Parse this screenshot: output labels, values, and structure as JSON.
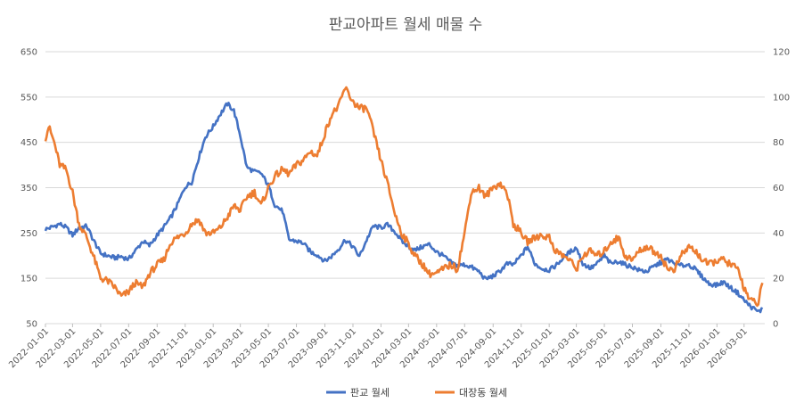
{
  "chart_data": {
    "type": "line",
    "title": "판교아파트 월세 매물 수",
    "x_tick_labels": [
      "2022-01-01",
      "2022-03-01",
      "2022-05-01",
      "2022-07-01",
      "2022-09-01",
      "2022-11-01",
      "2023-01-01",
      "2023-03-01",
      "2023-05-01",
      "2023-07-01",
      "2023-09-01",
      "2023-11-01",
      "2024-01-01",
      "2024-03-01",
      "2024-05-01",
      "2024-07-01",
      "2024-09-01",
      "2024-11-01",
      "2025-01-01",
      "2025-03-01",
      "2025-05-01",
      "2025-07-01",
      "2025-09-01",
      "2025-11-01",
      "2026-01-01",
      "2026-03-01"
    ],
    "xlim": [
      "2022-01-01",
      "2026-04-15"
    ],
    "y_left": {
      "min": 50,
      "max": 650,
      "ticks": [
        50,
        150,
        250,
        350,
        450,
        550,
        650
      ]
    },
    "y_right": {
      "min": 0,
      "max": 120,
      "ticks": [
        0,
        20,
        40,
        60,
        80,
        100,
        120
      ]
    },
    "grid": "horizontal",
    "legend_position": "bottom",
    "series": [
      {
        "name": "판교 월세",
        "axis": "left",
        "color": "#4472C4",
        "points": [
          [
            "2022-01-01",
            258
          ],
          [
            "2022-01-15",
            263
          ],
          [
            "2022-02-01",
            270
          ],
          [
            "2022-02-15",
            262
          ],
          [
            "2022-03-01",
            245
          ],
          [
            "2022-03-15",
            262
          ],
          [
            "2022-04-01",
            265
          ],
          [
            "2022-04-15",
            235
          ],
          [
            "2022-05-01",
            205
          ],
          [
            "2022-05-15",
            200
          ],
          [
            "2022-06-01",
            195
          ],
          [
            "2022-06-15",
            198
          ],
          [
            "2022-07-01",
            192
          ],
          [
            "2022-07-15",
            210
          ],
          [
            "2022-08-01",
            232
          ],
          [
            "2022-08-15",
            222
          ],
          [
            "2022-09-01",
            245
          ],
          [
            "2022-09-15",
            262
          ],
          [
            "2022-10-01",
            285
          ],
          [
            "2022-10-15",
            312
          ],
          [
            "2022-11-01",
            352
          ],
          [
            "2022-11-15",
            362
          ],
          [
            "2022-12-01",
            418
          ],
          [
            "2022-12-15",
            462
          ],
          [
            "2023-01-01",
            485
          ],
          [
            "2023-01-15",
            510
          ],
          [
            "2023-02-01",
            535
          ],
          [
            "2023-02-15",
            520
          ],
          [
            "2023-03-01",
            465
          ],
          [
            "2023-03-15",
            395
          ],
          [
            "2023-04-01",
            385
          ],
          [
            "2023-04-15",
            382
          ],
          [
            "2023-05-01",
            355
          ],
          [
            "2023-05-15",
            312
          ],
          [
            "2023-06-01",
            298
          ],
          [
            "2023-06-15",
            235
          ],
          [
            "2023-07-01",
            232
          ],
          [
            "2023-07-15",
            228
          ],
          [
            "2023-08-01",
            208
          ],
          [
            "2023-08-15",
            202
          ],
          [
            "2023-09-01",
            188
          ],
          [
            "2023-09-15",
            198
          ],
          [
            "2023-10-01",
            215
          ],
          [
            "2023-10-15",
            235
          ],
          [
            "2023-11-01",
            220
          ],
          [
            "2023-11-15",
            198
          ],
          [
            "2023-12-01",
            235
          ],
          [
            "2023-12-15",
            265
          ],
          [
            "2024-01-01",
            262
          ],
          [
            "2024-01-15",
            268
          ],
          [
            "2024-02-01",
            252
          ],
          [
            "2024-02-15",
            232
          ],
          [
            "2024-03-01",
            220
          ],
          [
            "2024-03-15",
            212
          ],
          [
            "2024-04-01",
            220
          ],
          [
            "2024-04-15",
            225
          ],
          [
            "2024-05-01",
            208
          ],
          [
            "2024-05-15",
            200
          ],
          [
            "2024-06-01",
            185
          ],
          [
            "2024-06-15",
            178
          ],
          [
            "2024-07-01",
            180
          ],
          [
            "2024-07-15",
            175
          ],
          [
            "2024-08-01",
            165
          ],
          [
            "2024-08-15",
            148
          ],
          [
            "2024-09-01",
            155
          ],
          [
            "2024-09-15",
            165
          ],
          [
            "2024-10-01",
            182
          ],
          [
            "2024-10-15",
            180
          ],
          [
            "2024-11-01",
            200
          ],
          [
            "2024-11-15",
            220
          ],
          [
            "2024-12-01",
            182
          ],
          [
            "2024-12-15",
            172
          ],
          [
            "2025-01-01",
            168
          ],
          [
            "2025-01-15",
            178
          ],
          [
            "2025-02-01",
            195
          ],
          [
            "2025-02-15",
            208
          ],
          [
            "2025-03-01",
            218
          ],
          [
            "2025-03-15",
            182
          ],
          [
            "2025-04-01",
            172
          ],
          [
            "2025-04-15",
            182
          ],
          [
            "2025-05-01",
            200
          ],
          [
            "2025-05-15",
            182
          ],
          [
            "2025-06-01",
            188
          ],
          [
            "2025-06-15",
            180
          ],
          [
            "2025-07-01",
            175
          ],
          [
            "2025-07-15",
            168
          ],
          [
            "2025-08-01",
            165
          ],
          [
            "2025-08-15",
            175
          ],
          [
            "2025-09-01",
            185
          ],
          [
            "2025-09-15",
            192
          ],
          [
            "2025-10-01",
            182
          ],
          [
            "2025-10-15",
            178
          ],
          [
            "2025-11-01",
            180
          ],
          [
            "2025-11-15",
            170
          ],
          [
            "2025-12-01",
            152
          ],
          [
            "2025-12-15",
            138
          ],
          [
            "2026-01-01",
            135
          ],
          [
            "2026-01-15",
            142
          ],
          [
            "2026-02-01",
            128
          ],
          [
            "2026-02-15",
            118
          ],
          [
            "2026-03-01",
            102
          ],
          [
            "2026-03-15",
            88
          ],
          [
            "2026-04-01",
            76
          ],
          [
            "2026-04-10",
            82
          ]
        ]
      },
      {
        "name": "대장동 월세",
        "axis": "right",
        "color": "#ED7D31",
        "points": [
          [
            "2022-01-01",
            82
          ],
          [
            "2022-01-08",
            87
          ],
          [
            "2022-01-20",
            80
          ],
          [
            "2022-02-01",
            70
          ],
          [
            "2022-02-15",
            68
          ],
          [
            "2022-03-01",
            58
          ],
          [
            "2022-03-15",
            44
          ],
          [
            "2022-04-01",
            38
          ],
          [
            "2022-04-15",
            30
          ],
          [
            "2022-05-01",
            20
          ],
          [
            "2022-05-15",
            19
          ],
          [
            "2022-06-01",
            16
          ],
          [
            "2022-06-15",
            12
          ],
          [
            "2022-07-01",
            14
          ],
          [
            "2022-07-15",
            18
          ],
          [
            "2022-08-01",
            16
          ],
          [
            "2022-08-15",
            22
          ],
          [
            "2022-09-01",
            26
          ],
          [
            "2022-09-15",
            28
          ],
          [
            "2022-10-01",
            36
          ],
          [
            "2022-10-15",
            38
          ],
          [
            "2022-11-01",
            40
          ],
          [
            "2022-11-15",
            44
          ],
          [
            "2022-12-01",
            46
          ],
          [
            "2022-12-15",
            40
          ],
          [
            "2023-01-01",
            40
          ],
          [
            "2023-01-15",
            42
          ],
          [
            "2023-02-01",
            47
          ],
          [
            "2023-02-15",
            52
          ],
          [
            "2023-03-01",
            50
          ],
          [
            "2023-03-15",
            56
          ],
          [
            "2023-04-01",
            58
          ],
          [
            "2023-04-15",
            52
          ],
          [
            "2023-05-01",
            60
          ],
          [
            "2023-05-15",
            65
          ],
          [
            "2023-06-01",
            68
          ],
          [
            "2023-06-15",
            66
          ],
          [
            "2023-07-01",
            70
          ],
          [
            "2023-07-15",
            72
          ],
          [
            "2023-08-01",
            76
          ],
          [
            "2023-08-15",
            74
          ],
          [
            "2023-09-01",
            84
          ],
          [
            "2023-09-15",
            92
          ],
          [
            "2023-10-01",
            96
          ],
          [
            "2023-10-15",
            104
          ],
          [
            "2023-11-01",
            98
          ],
          [
            "2023-11-15",
            95
          ],
          [
            "2023-12-01",
            95
          ],
          [
            "2023-12-15",
            85
          ],
          [
            "2024-01-01",
            72
          ],
          [
            "2024-01-15",
            62
          ],
          [
            "2024-02-01",
            48
          ],
          [
            "2024-02-15",
            40
          ],
          [
            "2024-03-01",
            35
          ],
          [
            "2024-03-15",
            30
          ],
          [
            "2024-04-01",
            26
          ],
          [
            "2024-04-15",
            22
          ],
          [
            "2024-05-01",
            22
          ],
          [
            "2024-05-15",
            24
          ],
          [
            "2024-06-01",
            26
          ],
          [
            "2024-06-15",
            24
          ],
          [
            "2024-07-01",
            40
          ],
          [
            "2024-07-15",
            58
          ],
          [
            "2024-08-01",
            60
          ],
          [
            "2024-08-15",
            56
          ],
          [
            "2024-09-01",
            60
          ],
          [
            "2024-09-15",
            62
          ],
          [
            "2024-10-01",
            58
          ],
          [
            "2024-10-15",
            44
          ],
          [
            "2024-11-01",
            40
          ],
          [
            "2024-11-15",
            36
          ],
          [
            "2024-12-01",
            38
          ],
          [
            "2024-12-15",
            39
          ],
          [
            "2025-01-01",
            38
          ],
          [
            "2025-01-15",
            32
          ],
          [
            "2025-02-01",
            30
          ],
          [
            "2025-02-15",
            28
          ],
          [
            "2025-03-01",
            24
          ],
          [
            "2025-03-15",
            30
          ],
          [
            "2025-04-01",
            32
          ],
          [
            "2025-04-15",
            30
          ],
          [
            "2025-05-01",
            32
          ],
          [
            "2025-05-15",
            36
          ],
          [
            "2025-06-01",
            38
          ],
          [
            "2025-06-15",
            30
          ],
          [
            "2025-07-01",
            28
          ],
          [
            "2025-07-15",
            32
          ],
          [
            "2025-08-01",
            34
          ],
          [
            "2025-08-15",
            32
          ],
          [
            "2025-09-01",
            30
          ],
          [
            "2025-09-15",
            24
          ],
          [
            "2025-10-01",
            24
          ],
          [
            "2025-10-15",
            30
          ],
          [
            "2025-11-01",
            34
          ],
          [
            "2025-11-15",
            32
          ],
          [
            "2025-12-01",
            28
          ],
          [
            "2025-12-15",
            26
          ],
          [
            "2026-01-01",
            28
          ],
          [
            "2026-01-15",
            28
          ],
          [
            "2026-02-01",
            26
          ],
          [
            "2026-02-15",
            24
          ],
          [
            "2026-03-01",
            16
          ],
          [
            "2026-03-15",
            10
          ],
          [
            "2026-04-01",
            9
          ],
          [
            "2026-04-10",
            18
          ]
        ]
      }
    ]
  }
}
